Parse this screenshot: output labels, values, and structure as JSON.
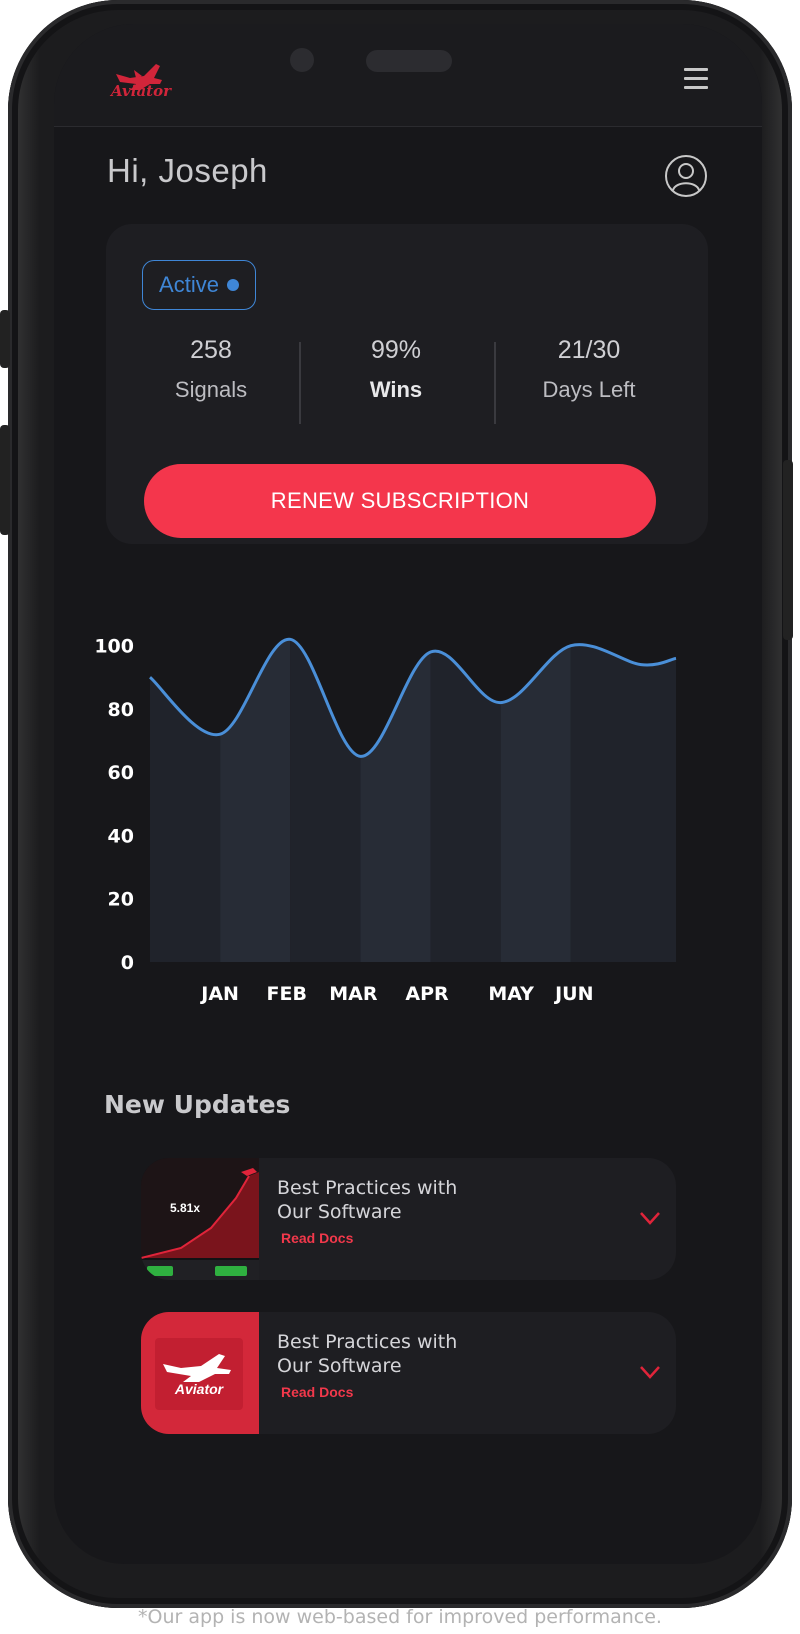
{
  "header": {
    "logo_text": "Aviator",
    "menu_icon": "hamburger-menu-icon",
    "brand_color": "#d1253a"
  },
  "greeting": "Hi, Joseph",
  "avatar_icon": "user-circle-icon",
  "stats_card": {
    "status": "Active",
    "status_color": "#3f86d6",
    "stats": [
      {
        "value": "258",
        "label": "Signals"
      },
      {
        "value": "99%",
        "label": "Wins"
      },
      {
        "value": "21/30",
        "label": "Days Left"
      }
    ],
    "renew_label": "RENEW SUBSCRIPTION",
    "renew_color": "#f4364c"
  },
  "chart_data": {
    "type": "area",
    "categories": [
      "JAN",
      "FEB",
      "MAR",
      "APR",
      "MAY",
      "JUN"
    ],
    "points": [
      {
        "x": 0.0,
        "y": 90
      },
      {
        "x": 1.0,
        "y": 72
      },
      {
        "x": 2.0,
        "y": 102
      },
      {
        "x": 3.0,
        "y": 65
      },
      {
        "x": 4.0,
        "y": 98
      },
      {
        "x": 5.0,
        "y": 82
      },
      {
        "x": 6.0,
        "y": 100
      },
      {
        "x": 7.0,
        "y": 94
      },
      {
        "x": 7.5,
        "y": 96
      }
    ],
    "yticks": [
      0,
      20,
      40,
      60,
      80,
      100
    ],
    "ylim": [
      0,
      110
    ],
    "line_color": "#4a8fd8",
    "grid": false
  },
  "updates": {
    "title": "New Updates",
    "items": [
      {
        "title_line1": "Best Practices with",
        "title_line2": "Our Software",
        "link": "Read Docs",
        "thumb_text": "5.81x"
      },
      {
        "title_line1": "Best Practices with",
        "title_line2": "Our Software",
        "link": "Read Docs",
        "thumb_text": "Aviator"
      }
    ]
  },
  "footer_note": "*Our app is now web-based for improved performance."
}
